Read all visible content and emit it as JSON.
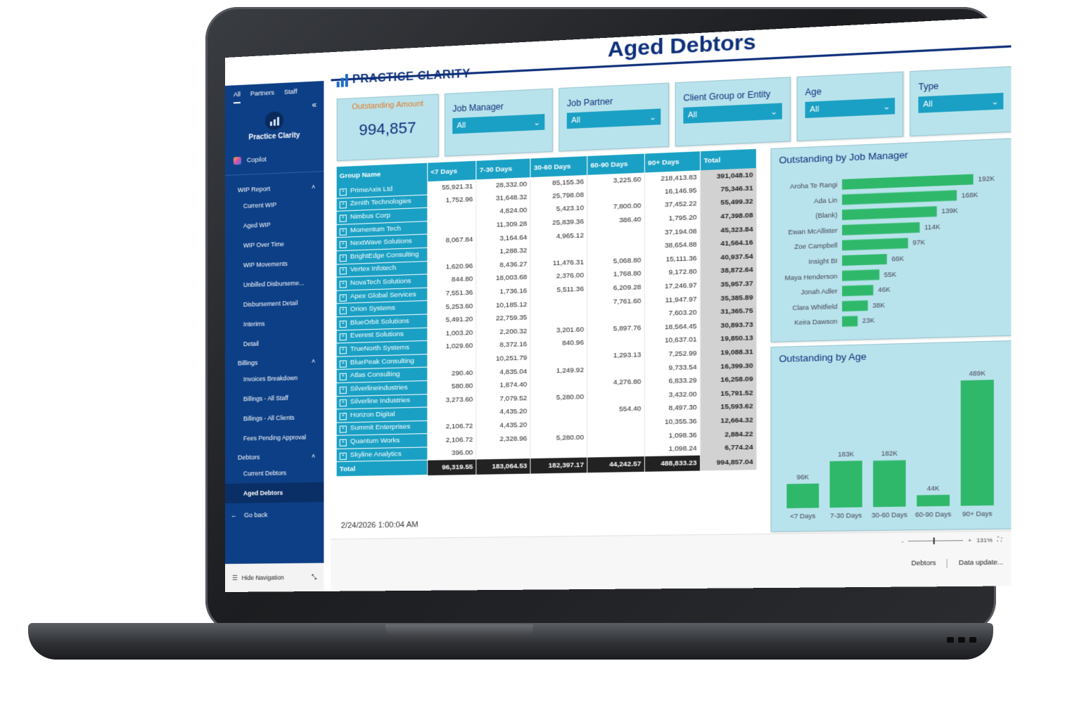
{
  "nav": {
    "tabs": [
      "All",
      "Partners",
      "Staff"
    ],
    "app_name": "Practice Clarity",
    "copilot": "Copilot",
    "sections": [
      {
        "title": "WIP Report",
        "items": [
          "Current WIP",
          "Aged WIP",
          "WIP Over Time",
          "WIP Movements",
          "Unbilled Disburseme...",
          "Disbursement Detail",
          "Interims",
          "Detail"
        ]
      },
      {
        "title": "Billings",
        "items": [
          "Invoices Breakdown",
          "Billings - All Staff",
          "Billings - All Clients",
          "Fees Pending Approval"
        ]
      },
      {
        "title": "Debtors",
        "items": [
          "Current Debtors",
          "Aged Debtors"
        ]
      }
    ],
    "go_back": "Go back",
    "hide_navigation": "Hide Navigation"
  },
  "report": {
    "brand": "PRACTICE CLARITY",
    "title": "Aged Debtors",
    "timestamp": "2/24/2026 1:00:04 AM"
  },
  "kpi": {
    "label": "Outstanding Amount",
    "value": "994,857"
  },
  "slicers": [
    {
      "label": "Job Manager",
      "value": "All"
    },
    {
      "label": "Job Partner",
      "value": "All"
    },
    {
      "label": "Client Group or Entity",
      "value": "All"
    },
    {
      "label": "Age",
      "value": "All"
    },
    {
      "label": "Type",
      "value": "All"
    }
  ],
  "matrix": {
    "headers": [
      "Group Name",
      "<7 Days",
      "7-30 Days",
      "30-60 Days",
      "60-90 Days",
      "90+ Days",
      "Total"
    ],
    "rows": [
      [
        "PrimeAxis Ltd",
        "55,921.31",
        "28,332.00",
        "85,155.36",
        "3,225.60",
        "218,413.83",
        "391,048.10"
      ],
      [
        "Zenith Technologies",
        "1,752.96",
        "31,648.32",
        "25,798.08",
        "",
        "16,146.95",
        "75,346.31"
      ],
      [
        "Nimbus Corp",
        "",
        "4,824.00",
        "5,423.10",
        "7,800.00",
        "37,452.22",
        "55,499.32"
      ],
      [
        "Momentum Tech",
        "",
        "11,309.28",
        "25,839.36",
        "386.40",
        "1,795.20",
        "47,398.08"
      ],
      [
        "NextWave Solutions",
        "8,067.84",
        "3,164.64",
        "4,965.12",
        "",
        "37,194.08",
        "45,323.84"
      ],
      [
        "BrightEdge Consulting",
        "",
        "1,288.32",
        "",
        "",
        "38,654.88",
        "41,564.16"
      ],
      [
        "Vertex Infotech",
        "1,620.96",
        "8,436.27",
        "11,476.31",
        "5,068.80",
        "15,111.36",
        "40,937.54"
      ],
      [
        "NovaTech Solutions",
        "844.80",
        "18,003.68",
        "2,376.00",
        "1,768.80",
        "9,172.80",
        "38,872.64"
      ],
      [
        "Apex Global Services",
        "7,551.36",
        "1,736.16",
        "5,511.36",
        "6,209.28",
        "17,246.97",
        "35,957.37"
      ],
      [
        "Orion Systems",
        "5,253.60",
        "10,185.12",
        "",
        "7,761.60",
        "11,947.97",
        "35,385.89"
      ],
      [
        "BlueOrbit Solutions",
        "5,491.20",
        "22,759.35",
        "",
        "",
        "7,603.20",
        "31,365.75"
      ],
      [
        "Everest Solutions",
        "1,003.20",
        "2,200.32",
        "3,201.60",
        "5,897.76",
        "18,564.45",
        "30,893.73"
      ],
      [
        "TrueNorth Systems",
        "1,029.60",
        "8,372.16",
        "840.96",
        "",
        "10,637.01",
        "19,850.13"
      ],
      [
        "BluePeak Consulting",
        "",
        "10,251.79",
        "",
        "1,293.13",
        "7,252.99",
        "19,088.31"
      ],
      [
        "Atlas Consulting",
        "290.40",
        "4,835.04",
        "1,249.92",
        "",
        "9,733.54",
        "16,399.30"
      ],
      [
        "Silverlineindustries",
        "580.80",
        "1,874.40",
        "",
        "4,276.80",
        "6,833.29",
        "16,258.09"
      ],
      [
        "Silverline Industries",
        "3,273.60",
        "7,079.52",
        "5,280.00",
        "",
        "3,432.00",
        "15,791.52"
      ],
      [
        "Horizon Digital",
        "",
        "4,435.20",
        "",
        "554.40",
        "8,497.30",
        "15,593.62"
      ],
      [
        "Summit Enterprises",
        "2,106.72",
        "4,435.20",
        "",
        "",
        "10,355.36",
        "12,664.32"
      ],
      [
        "Quantum Works",
        "2,106.72",
        "2,328.96",
        "5,280.00",
        "",
        "1,098.36",
        "2,884.22"
      ],
      [
        "Skyline Analytics",
        "396.00",
        "",
        "",
        "",
        "1,098.24",
        "6,774.24"
      ]
    ],
    "total": [
      "Total",
      "96,319.55",
      "183,064.53",
      "182,397.17",
      "44,242.57",
      "488,833.23",
      "994,857.04"
    ]
  },
  "charts": {
    "by_manager": {
      "title": "Outstanding by Job Manager",
      "type": "bar",
      "orientation": "horizontal",
      "color": "#2fb86a",
      "categories": [
        "Aroha Te Rangi",
        "Ada Lin",
        "(Blank)",
        "Ewan McAllister",
        "Zoe Campbell",
        "Insight BI",
        "Maya Henderson",
        "Jonah Adler",
        "Clara Whitfield",
        "Keira Dawson"
      ],
      "values": [
        192,
        168,
        139,
        114,
        97,
        66,
        55,
        46,
        38,
        23
      ],
      "labels": [
        "192K",
        "168K",
        "139K",
        "114K",
        "97K",
        "66K",
        "55K",
        "46K",
        "38K",
        "23K"
      ]
    },
    "by_age": {
      "title": "Outstanding by Age",
      "type": "bar",
      "orientation": "vertical",
      "color": "#2fb86a",
      "categories": [
        "<7 Days",
        "7-30 Days",
        "30-60 Days",
        "60-90 Days",
        "90+ Days"
      ],
      "values": [
        96,
        183,
        182,
        44,
        489
      ],
      "labels": [
        "96K",
        "183K",
        "182K",
        "44K",
        "489K"
      ]
    }
  },
  "status": {
    "zoom": "131%",
    "page": "Debtors",
    "data_update": "Data update..."
  }
}
